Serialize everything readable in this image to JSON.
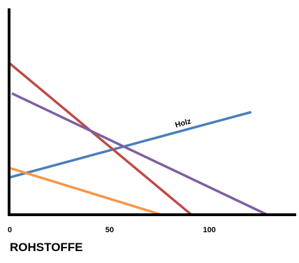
{
  "chart_data": {
    "type": "line",
    "title": "ROHSTOFFE",
    "xlabel": "",
    "ylabel": "",
    "xlim": [
      0,
      140
    ],
    "ylim": [
      0,
      100
    ],
    "x_ticks": [
      0,
      50,
      100
    ],
    "x_tick_labels": [
      "0",
      "50",
      "100"
    ],
    "grid": false,
    "legend": "none",
    "series": [
      {
        "name": "Holz",
        "color": "#4A7EBB",
        "x": [
          0,
          121
        ],
        "y": [
          20,
          55
        ]
      },
      {
        "color": "#BE4B48",
        "x": [
          0,
          91
        ],
        "y": [
          81,
          0
        ]
      },
      {
        "color": "#7D5FA0",
        "x": [
          1,
          129
        ],
        "y": [
          65,
          0
        ]
      },
      {
        "color": "#F79646",
        "x": [
          0,
          76
        ],
        "y": [
          25,
          0
        ]
      }
    ]
  }
}
